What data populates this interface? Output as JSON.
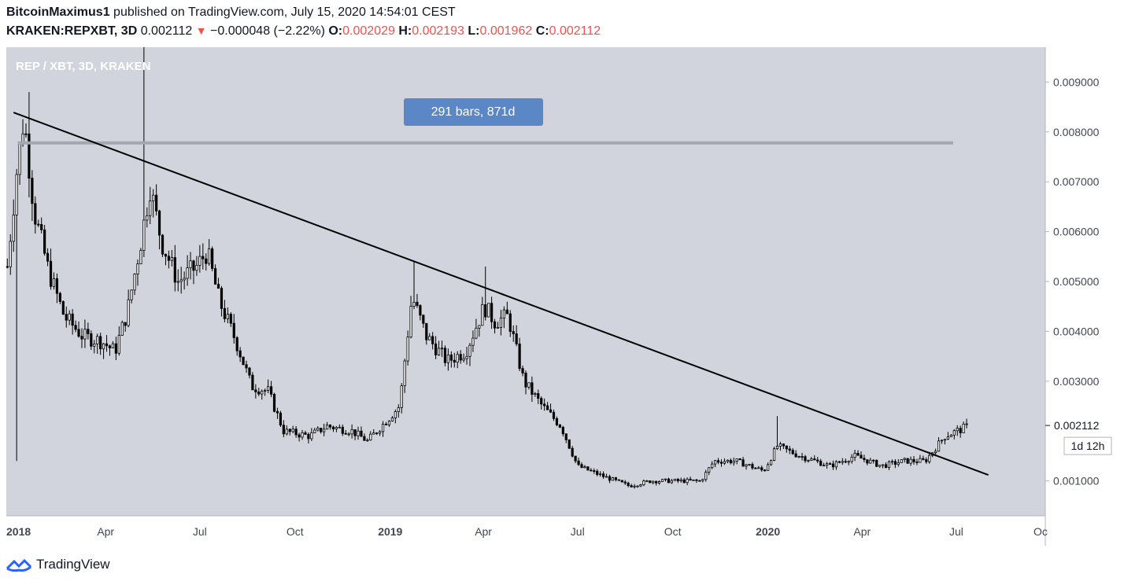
{
  "header": {
    "author": "BitcoinMaximus1",
    "published_text": "published on TradingView.com, July 15, 2020 14:54:01 CEST",
    "symbol": "KRAKEN:REPXBT, 3D",
    "last": "0.002112",
    "change": "−0.000048 (−2.22%)",
    "o_label": "O:",
    "o": "0.002029",
    "h_label": "H:",
    "h": "0.002193",
    "l_label": "L:",
    "l": "0.001962",
    "c_label": "C:",
    "c": "0.002112"
  },
  "colors": {
    "plot_bg": "#d1d4dc",
    "axis_bg": "#ffffff",
    "candle": "#000000",
    "range_badge": "#5b87c7",
    "horizontal_line": "#a3a7b2",
    "price_text": "#131722",
    "down_red": "#ef5350"
  },
  "watermark": "REP / XBT, 3D, KRAKEN",
  "range_badge": "291 bars, 871d",
  "price_label": "0.002112",
  "countdown_label": "1d 12h",
  "brand": "TradingView",
  "chart_data": {
    "type": "candlestick",
    "symbol": "REP / XBT",
    "timeframe": "3D",
    "y_axis_ticks": [
      "0.009000",
      "0.008000",
      "0.007000",
      "0.006000",
      "0.005000",
      "0.004000",
      "0.003000",
      "0.001000"
    ],
    "x_axis_ticks": [
      "2018",
      "Apr",
      "Jul",
      "Oct",
      "2019",
      "Apr",
      "Jul",
      "Oct",
      "2020",
      "Apr",
      "Jul",
      "Oc"
    ],
    "ylim": [
      0.0003,
      0.0097
    ],
    "xlim": [
      "2017-12-26",
      "2020-09-25"
    ],
    "close_path": [
      [
        "2017-12-27",
        0.0053
      ],
      [
        "2018-01-05",
        0.0072
      ],
      [
        "2018-01-12",
        0.0083
      ],
      [
        "2018-01-22",
        0.0064
      ],
      [
        "2018-02-05",
        0.0052
      ],
      [
        "2018-02-20",
        0.0043
      ],
      [
        "2018-03-10",
        0.0039
      ],
      [
        "2018-03-28",
        0.0038
      ],
      [
        "2018-04-10",
        0.0036
      ],
      [
        "2018-04-22",
        0.0044
      ],
      [
        "2018-05-05",
        0.0058
      ],
      [
        "2018-05-14",
        0.0069
      ],
      [
        "2018-05-25",
        0.0058
      ],
      [
        "2018-06-10",
        0.005
      ],
      [
        "2018-06-28",
        0.0053
      ],
      [
        "2018-07-08",
        0.0056
      ],
      [
        "2018-07-20",
        0.0046
      ],
      [
        "2018-08-05",
        0.0038
      ],
      [
        "2018-08-20",
        0.0029
      ],
      [
        "2018-09-05",
        0.0028
      ],
      [
        "2018-09-20",
        0.002
      ],
      [
        "2018-10-15",
        0.0019
      ],
      [
        "2018-11-01",
        0.0021
      ],
      [
        "2018-11-25",
        0.002
      ],
      [
        "2018-12-10",
        0.0018
      ],
      [
        "2018-12-28",
        0.0022
      ],
      [
        "2019-01-10",
        0.0025
      ],
      [
        "2019-01-22",
        0.0047
      ],
      [
        "2019-02-05",
        0.0039
      ],
      [
        "2019-02-25",
        0.0034
      ],
      [
        "2019-03-15",
        0.0036
      ],
      [
        "2019-04-02",
        0.0045
      ],
      [
        "2019-04-12",
        0.0042
      ],
      [
        "2019-04-25",
        0.0043
      ],
      [
        "2019-05-10",
        0.003
      ],
      [
        "2019-05-28",
        0.0025
      ],
      [
        "2019-06-15",
        0.0021
      ],
      [
        "2019-07-01",
        0.0013
      ],
      [
        "2019-07-25",
        0.0011
      ],
      [
        "2019-08-20",
        0.0009
      ],
      [
        "2019-09-10",
        0.001
      ],
      [
        "2019-10-10",
        0.001
      ],
      [
        "2019-10-28",
        0.001
      ],
      [
        "2019-11-10",
        0.0014
      ],
      [
        "2019-12-01",
        0.0014
      ],
      [
        "2019-12-28",
        0.0012
      ],
      [
        "2020-01-10",
        0.0017
      ],
      [
        "2020-02-01",
        0.0015
      ],
      [
        "2020-03-01",
        0.0013
      ],
      [
        "2020-03-25",
        0.0015
      ],
      [
        "2020-04-20",
        0.0013
      ],
      [
        "2020-05-12",
        0.0014
      ],
      [
        "2020-06-01",
        0.0014
      ],
      [
        "2020-06-20",
        0.0019
      ],
      [
        "2020-07-13",
        0.0021
      ]
    ],
    "spikes": [
      {
        "date": "2018-01-04",
        "low": 0.0014
      },
      {
        "date": "2018-01-16",
        "high": 0.0088
      },
      {
        "date": "2018-05-08",
        "high": 0.0097
      },
      {
        "date": "2019-01-22",
        "high": 0.0054
      },
      {
        "date": "2019-04-02",
        "high": 0.0053
      },
      {
        "date": "2020-01-10",
        "high": 0.0023
      }
    ],
    "trendline": [
      [
        "2018-01-02",
        0.00839
      ],
      [
        "2020-08-01",
        0.00112
      ]
    ],
    "horizontal_line": {
      "value": 0.00778,
      "from": "2018-01-06",
      "to": "2020-06-28"
    },
    "last_price": 0.002112
  }
}
